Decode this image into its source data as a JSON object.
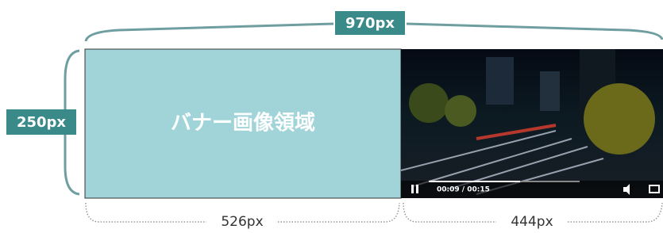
{
  "width_label": "970px",
  "height_label": "250px",
  "banner": {
    "label": "バナー画像領域",
    "width_label": "526px"
  },
  "video": {
    "time": "00:09 / 00:15",
    "width_label": "444px"
  }
}
